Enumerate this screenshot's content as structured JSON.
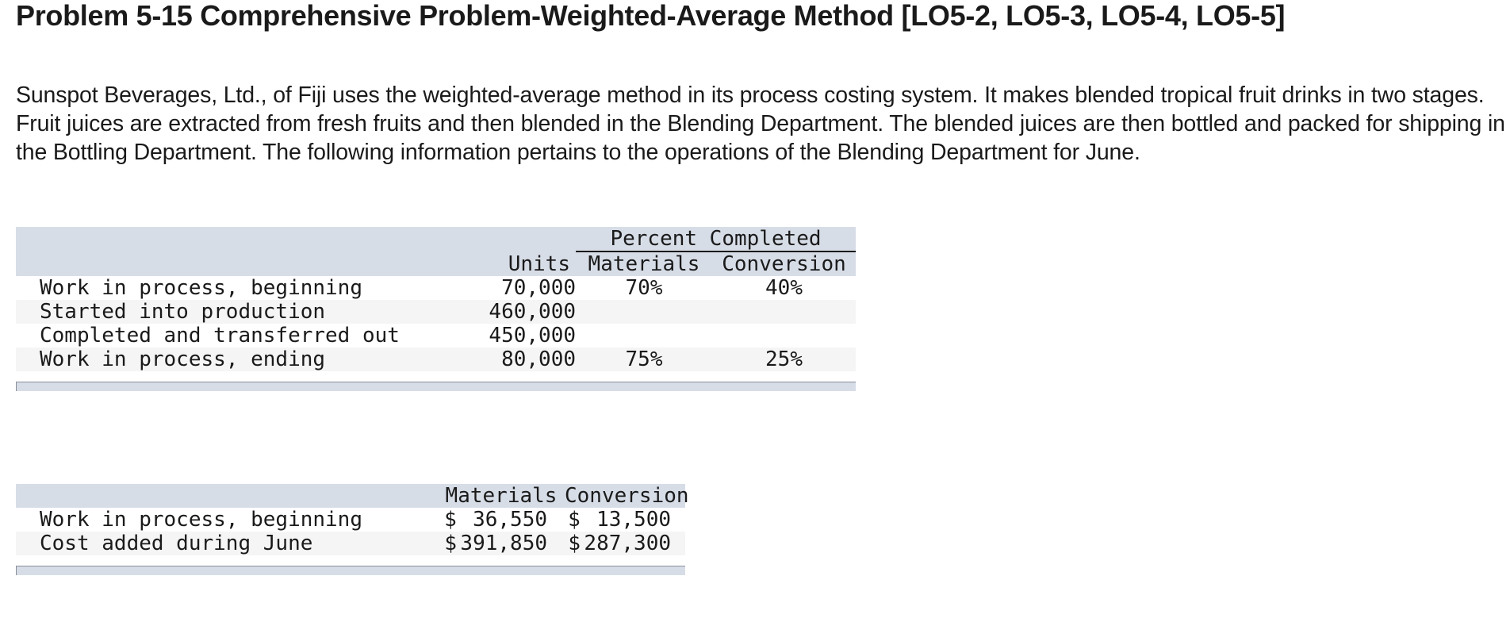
{
  "problem": {
    "title": "Problem 5-15 Comprehensive Problem-Weighted-Average Method [LO5-2, LO5-3, LO5-4, LO5-5]",
    "intro": "Sunspot Beverages, Ltd., of Fiji uses the weighted-average method in its process costing system. It makes blended tropical fruit drinks in two stages. Fruit juices are extracted from fresh fruits and then blended in the Blending Department. The blended juices are then bottled and packed for shipping in the Bottling Department. The following information pertains to the operations of the Blending Department for June."
  },
  "units_table": {
    "group_header": "Percent Completed",
    "columns": {
      "units": "Units",
      "materials": "Materials",
      "conversion": "Conversion"
    },
    "rows": [
      {
        "label": "Work in process, beginning",
        "units": "70,000",
        "materials": "70%",
        "conversion": "40%"
      },
      {
        "label": "Started into production",
        "units": "460,000",
        "materials": "",
        "conversion": ""
      },
      {
        "label": "Completed and transferred out",
        "units": "450,000",
        "materials": "",
        "conversion": ""
      },
      {
        "label": "Work in process, ending",
        "units": "80,000",
        "materials": "75%",
        "conversion": "25%"
      }
    ]
  },
  "cost_table": {
    "columns": {
      "materials": "Materials",
      "conversion": "Conversion"
    },
    "currency_symbol": "$",
    "rows": [
      {
        "label": "Work in process, beginning",
        "materials": "36,550",
        "conversion": "13,500"
      },
      {
        "label": "Cost added during June",
        "materials": "391,850",
        "conversion": "287,300"
      }
    ]
  }
}
